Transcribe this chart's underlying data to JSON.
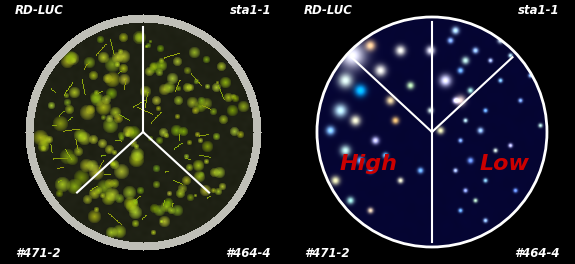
{
  "bg_color": "#000000",
  "fig_width": 5.75,
  "fig_height": 2.64,
  "dpi": 100,
  "left_panel": {
    "top_left_label": "RD-LUC",
    "top_right_label": "sta1-1",
    "bottom_left_label": "#471-2",
    "bottom_right_label": "#464-4",
    "label_color": "white",
    "label_fontsize": 8.5,
    "dish_outer_color": "#d8d8d8",
    "dish_inner_bg": "#1a1a10",
    "seedling_colors": [
      "#b8d020",
      "#c8e030",
      "#a0c010",
      "#d8e850",
      "#80a808"
    ],
    "divider_color": "white",
    "divider_lw": 1.5
  },
  "right_panel": {
    "top_left_label": "RD-LUC",
    "top_right_label": "sta1-1",
    "bottom_left_label": "#471-2",
    "bottom_right_label": "#464-4",
    "high_label": "High",
    "low_label": "Low",
    "high_color": "#CC0000",
    "low_color": "#CC0000",
    "high_fontsize": 16,
    "low_fontsize": 16,
    "label_color": "white",
    "label_fontsize": 8.5,
    "bg_dark_blue": [
      0.0,
      0.0,
      0.15
    ],
    "divider_color": "white",
    "divider_lw": 1.5,
    "circle_color": "white",
    "circle_lw": 2.0
  }
}
